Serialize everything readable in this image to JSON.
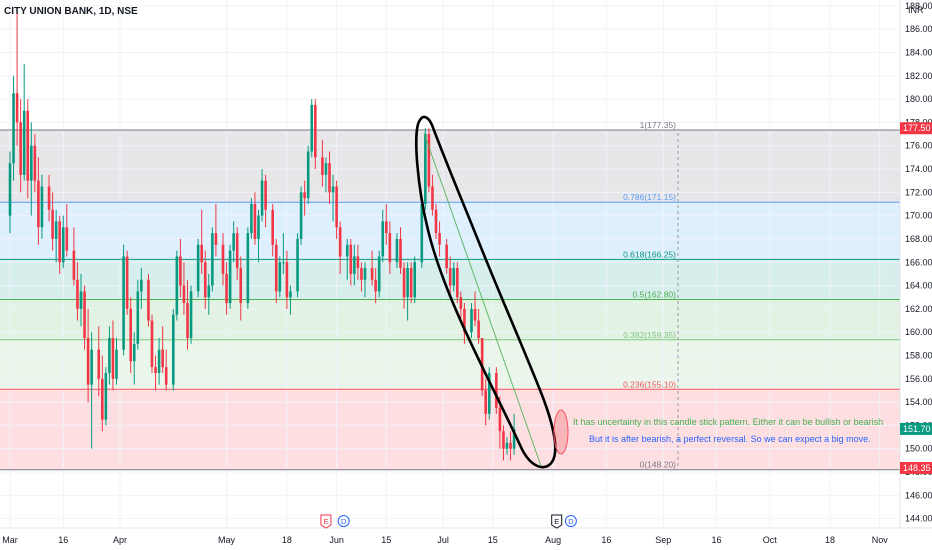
{
  "chart_data": {
    "type": "candlestick",
    "title": "CITY UNION BANK, 1D, NSE",
    "currency": "INR",
    "ylim": [
      143.2,
      188.5
    ],
    "y_ticks": [
      144,
      146,
      148,
      150,
      152,
      154,
      156,
      158,
      160,
      162,
      164,
      166,
      168,
      170,
      172,
      174,
      176,
      178,
      180,
      182,
      184,
      186,
      188
    ],
    "x_ticks": [
      {
        "label": "Mar",
        "day": 0
      },
      {
        "label": "16",
        "day": 15
      },
      {
        "label": "Apr",
        "day": 31
      },
      {
        "label": "May",
        "day": 61
      },
      {
        "label": "18",
        "day": 78
      },
      {
        "label": "Jun",
        "day": 92
      },
      {
        "label": "15",
        "day": 106
      },
      {
        "label": "Jul",
        "day": 122
      },
      {
        "label": "15",
        "day": 136
      },
      {
        "label": "Aug",
        "day": 153
      },
      {
        "label": "16",
        "day": 168
      },
      {
        "label": "Sep",
        "day": 184
      },
      {
        "label": "16",
        "day": 199
      },
      {
        "label": "Oct",
        "day": 214
      },
      {
        "label": "18",
        "day": 231
      },
      {
        "label": "Nov",
        "day": 245
      }
    ],
    "fib_levels": [
      {
        "label": "1(177.35)",
        "value": 177.35,
        "color": "#787b86"
      },
      {
        "label": "0.786(171.15)",
        "value": 171.15,
        "color": "#5b9cf6"
      },
      {
        "label": "0.618(166.25)",
        "value": 166.25,
        "color": "#089981"
      },
      {
        "label": "0.5(162.80)",
        "value": 162.8,
        "color": "#4caf50"
      },
      {
        "label": "0.382(159.35)",
        "value": 159.35,
        "color": "#81c784"
      },
      {
        "label": "0.236(155.10)",
        "value": 155.1,
        "color": "#f7525f"
      },
      {
        "label": "0(148.20)",
        "value": 148.2,
        "color": "#787b86"
      }
    ],
    "price_labels": [
      {
        "text": "177.50",
        "value": 177.5,
        "color": "#f23645"
      },
      {
        "text": "151.70",
        "value": 151.7,
        "color": "#089981"
      },
      {
        "text": "148.35",
        "value": 148.35,
        "color": "#f23645"
      }
    ],
    "annotations": [
      {
        "text": "It has uncertainty in this candle stick pattern. Either it can be bullish or bearish",
        "color": "#4caf50"
      },
      {
        "text": "But it is after bearish, a perfect reversal. So we can expect a big move.",
        "color": "#2962ff"
      }
    ],
    "event_markers": [
      {
        "text": "E",
        "color": "#f23645",
        "day": 89
      },
      {
        "text": "D",
        "color": "#2962ff",
        "day": 94
      },
      {
        "text": "E",
        "color": "#131722",
        "day": 154
      },
      {
        "text": "D",
        "color": "#2962ff",
        "day": 158
      }
    ],
    "candles": [
      [
        0,
        170.0,
        175.5,
        168.5,
        174.5
      ],
      [
        1,
        174.5,
        182.0,
        173.0,
        180.5
      ],
      [
        2,
        180.5,
        187.5,
        176.0,
        178.0
      ],
      [
        3,
        178.0,
        180.0,
        172.0,
        173.5
      ],
      [
        4,
        173.5,
        183.0,
        173.0,
        179.0
      ],
      [
        5,
        179.0,
        180.0,
        171.5,
        173.0
      ],
      [
        6,
        173.0,
        178.0,
        170.0,
        176.0
      ],
      [
        7,
        176.0,
        177.0,
        172.0,
        173.0
      ],
      [
        8,
        173.0,
        175.0,
        167.5,
        169.0
      ],
      [
        9,
        169.0,
        173.5,
        168.0,
        172.5
      ],
      [
        11,
        172.5,
        173.5,
        169.5,
        170.5
      ],
      [
        12,
        170.5,
        172.0,
        167.0,
        168.0
      ],
      [
        13,
        168.0,
        170.5,
        166.0,
        169.5
      ],
      [
        14,
        169.5,
        170.0,
        165.0,
        166.0
      ],
      [
        15,
        166.0,
        170.0,
        165.5,
        169.0
      ],
      [
        16,
        169.0,
        171.0,
        166.5,
        167.0
      ],
      [
        18,
        167.0,
        169.0,
        164.0,
        164.5
      ],
      [
        19,
        164.5,
        166.0,
        161.0,
        162.0
      ],
      [
        20,
        162.0,
        165.0,
        160.5,
        163.5
      ],
      [
        21,
        163.5,
        164.0,
        158.5,
        159.5
      ],
      [
        22,
        159.5,
        162.0,
        154.0,
        155.5
      ],
      [
        23,
        155.5,
        160.0,
        150.0,
        158.5
      ],
      [
        25,
        158.5,
        160.5,
        154.5,
        156.0
      ],
      [
        26,
        156.0,
        158.0,
        151.5,
        152.5
      ],
      [
        27,
        152.5,
        157.0,
        152.0,
        156.5
      ],
      [
        28,
        156.5,
        160.5,
        155.5,
        159.5
      ],
      [
        29,
        159.5,
        161.0,
        155.0,
        156.0
      ],
      [
        30,
        156.0,
        159.5,
        155.5,
        158.5
      ],
      [
        32,
        158.5,
        167.5,
        158.0,
        166.5
      ],
      [
        33,
        166.5,
        167.0,
        161.5,
        162.0
      ],
      [
        34,
        162.0,
        163.0,
        156.5,
        157.5
      ],
      [
        35,
        157.5,
        160.0,
        155.5,
        159.0
      ],
      [
        36,
        159.0,
        164.5,
        158.5,
        163.5
      ],
      [
        37,
        163.5,
        165.5,
        162.0,
        164.5
      ],
      [
        39,
        164.5,
        165.0,
        160.5,
        161.0
      ],
      [
        40,
        161.0,
        161.5,
        156.5,
        157.0
      ],
      [
        41,
        157.0,
        158.0,
        155.0,
        156.5
      ],
      [
        42,
        156.5,
        159.5,
        155.5,
        158.5
      ],
      [
        43,
        158.5,
        160.5,
        156.5,
        157.0
      ],
      [
        44,
        157.0,
        158.5,
        155.0,
        155.5
      ],
      [
        46,
        155.5,
        162.0,
        155.0,
        161.5
      ],
      [
        47,
        161.5,
        167.0,
        161.0,
        166.5
      ],
      [
        48,
        166.5,
        168.0,
        163.0,
        164.0
      ],
      [
        49,
        164.0,
        166.0,
        161.5,
        162.5
      ],
      [
        50,
        162.5,
        164.5,
        158.5,
        159.5
      ],
      [
        51,
        159.5,
        164.0,
        159.0,
        163.5
      ],
      [
        53,
        163.5,
        168.0,
        163.0,
        167.5
      ],
      [
        54,
        167.5,
        170.5,
        165.0,
        166.0
      ],
      [
        55,
        166.0,
        167.0,
        162.0,
        163.0
      ],
      [
        56,
        163.0,
        165.0,
        161.5,
        164.0
      ],
      [
        57,
        164.0,
        169.0,
        163.5,
        168.5
      ],
      [
        58,
        168.5,
        171.0,
        166.5,
        167.5
      ],
      [
        60,
        167.5,
        168.5,
        164.0,
        165.0
      ],
      [
        61,
        165.0,
        166.0,
        161.5,
        162.5
      ],
      [
        62,
        162.5,
        167.5,
        162.0,
        167.0
      ],
      [
        63,
        167.0,
        169.5,
        166.0,
        168.5
      ],
      [
        64,
        168.5,
        169.0,
        164.5,
        165.5
      ],
      [
        65,
        165.5,
        166.5,
        161.0,
        162.5
      ],
      [
        67,
        162.5,
        169.0,
        162.0,
        168.5
      ],
      [
        68,
        168.5,
        171.5,
        168.0,
        171.0
      ],
      [
        69,
        171.0,
        172.0,
        167.5,
        168.0
      ],
      [
        70,
        168.0,
        170.5,
        166.0,
        170.0
      ],
      [
        71,
        170.0,
        174.0,
        169.5,
        173.0
      ],
      [
        72,
        173.0,
        173.5,
        169.0,
        170.5
      ],
      [
        74,
        170.5,
        171.0,
        166.5,
        167.5
      ],
      [
        75,
        167.5,
        168.0,
        162.5,
        163.5
      ],
      [
        76,
        163.5,
        166.5,
        163.0,
        166.0
      ],
      [
        77,
        166.0,
        168.5,
        165.0,
        166.0
      ],
      [
        78,
        166.0,
        167.0,
        162.0,
        163.0
      ],
      [
        79,
        163.0,
        164.0,
        161.5,
        163.5
      ],
      [
        81,
        163.5,
        168.5,
        163.0,
        168.0
      ],
      [
        82,
        168.0,
        172.5,
        167.5,
        172.0
      ],
      [
        83,
        172.0,
        173.0,
        170.0,
        171.5
      ],
      [
        84,
        171.5,
        176.0,
        171.0,
        175.5
      ],
      [
        85,
        175.5,
        180.0,
        175.0,
        179.5
      ],
      [
        86,
        179.5,
        180.0,
        174.0,
        175.0
      ],
      [
        88,
        175.0,
        176.5,
        172.5,
        173.5
      ],
      [
        89,
        173.5,
        175.0,
        172.0,
        174.5
      ],
      [
        90,
        174.5,
        175.5,
        171.0,
        172.0
      ],
      [
        91,
        172.0,
        173.5,
        169.5,
        172.5
      ],
      [
        92,
        172.5,
        173.0,
        168.0,
        169.0
      ],
      [
        93,
        169.0,
        169.5,
        165.0,
        166.5
      ],
      [
        95,
        166.5,
        168.0,
        164.5,
        167.5
      ],
      [
        96,
        167.5,
        168.0,
        164.0,
        165.0
      ],
      [
        97,
        165.0,
        167.5,
        164.0,
        166.5
      ],
      [
        98,
        166.5,
        167.5,
        164.5,
        165.5
      ],
      [
        99,
        165.5,
        166.0,
        163.5,
        164.5
      ],
      [
        100,
        164.5,
        166.0,
        163.0,
        165.5
      ],
      [
        102,
        165.5,
        167.0,
        164.0,
        164.5
      ],
      [
        103,
        164.5,
        165.5,
        162.5,
        163.5
      ],
      [
        104,
        163.5,
        167.0,
        163.0,
        166.5
      ],
      [
        105,
        166.5,
        170.5,
        166.0,
        169.5
      ],
      [
        106,
        169.5,
        171.0,
        167.5,
        168.5
      ],
      [
        107,
        168.5,
        169.5,
        165.0,
        166.0
      ],
      [
        109,
        166.0,
        168.5,
        165.5,
        168.0
      ],
      [
        110,
        168.0,
        169.0,
        165.0,
        165.5
      ],
      [
        111,
        165.5,
        166.0,
        162.0,
        163.0
      ],
      [
        112,
        163.0,
        166.0,
        161.0,
        165.5
      ],
      [
        113,
        165.5,
        166.0,
        162.5,
        163.0
      ],
      [
        114,
        163.0,
        166.5,
        162.5,
        166.0
      ],
      [
        116,
        166.0,
        171.5,
        165.5,
        171.0
      ],
      [
        117,
        171.0,
        177.5,
        170.5,
        177.0
      ],
      [
        118,
        177.0,
        177.5,
        172.0,
        172.5
      ],
      [
        119,
        172.5,
        173.5,
        170.0,
        170.5
      ],
      [
        120,
        170.5,
        171.0,
        168.0,
        168.5
      ],
      [
        121,
        168.5,
        169.5,
        166.5,
        167.5
      ],
      [
        123,
        167.5,
        168.0,
        165.0,
        165.5
      ],
      [
        124,
        165.5,
        166.5,
        163.0,
        164.0
      ],
      [
        125,
        164.0,
        166.0,
        163.5,
        165.5
      ],
      [
        126,
        165.5,
        166.0,
        162.5,
        163.0
      ],
      [
        127,
        163.0,
        163.5,
        161.0,
        162.0
      ],
      [
        128,
        162.0,
        162.5,
        159.0,
        160.0
      ],
      [
        130,
        160.0,
        162.5,
        159.5,
        162.0
      ],
      [
        131,
        162.0,
        163.5,
        160.5,
        161.0
      ],
      [
        132,
        161.0,
        162.0,
        159.0,
        159.5
      ],
      [
        133,
        159.5,
        159.5,
        154.5,
        155.0
      ],
      [
        134,
        155.0,
        156.0,
        152.0,
        153.0
      ],
      [
        135,
        153.0,
        157.0,
        152.5,
        156.5
      ],
      [
        137,
        156.5,
        157.0,
        153.0,
        153.5
      ],
      [
        138,
        153.5,
        154.5,
        150.0,
        151.5
      ],
      [
        139,
        151.5,
        152.0,
        149.0,
        150.0
      ],
      [
        140,
        150.0,
        151.0,
        149.5,
        150.5
      ],
      [
        141,
        150.5,
        151.5,
        149.0,
        150.0
      ],
      [
        142,
        150.0,
        153.0,
        149.5,
        151.7
      ]
    ]
  }
}
